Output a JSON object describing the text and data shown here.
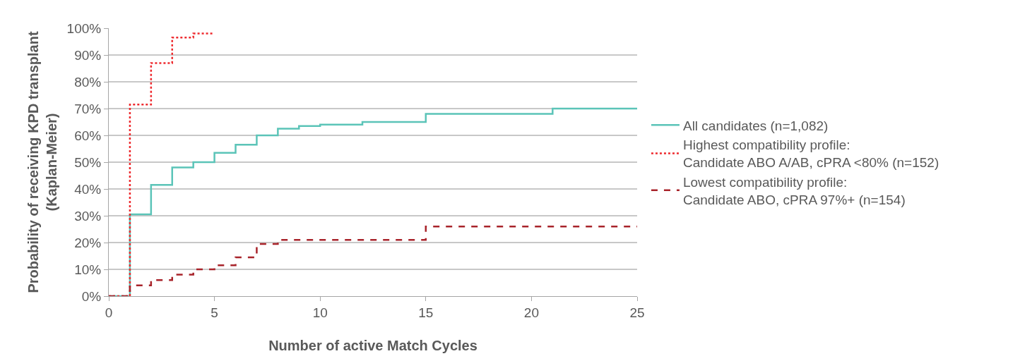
{
  "chart_data": {
    "type": "step",
    "xlabel": "Number of active Match Cycles",
    "ylabel": "Probability of receiving KPD transplant\n(Kaplan-Meier)",
    "xlim": [
      0,
      25
    ],
    "xticks": [
      0,
      5,
      10,
      15,
      20,
      25
    ],
    "ylim": [
      0,
      100
    ],
    "yticks": [
      {
        "value": 0,
        "label": "0%"
      },
      {
        "value": 10,
        "label": "10%"
      },
      {
        "value": 20,
        "label": "20%"
      },
      {
        "value": 30,
        "label": "30%"
      },
      {
        "value": 40,
        "label": "40%"
      },
      {
        "value": 50,
        "label": "50%"
      },
      {
        "value": 60,
        "label": "60%"
      },
      {
        "value": 70,
        "label": "70%"
      },
      {
        "value": 80,
        "label": "80%"
      },
      {
        "value": 90,
        "label": "90%"
      },
      {
        "value": 100,
        "label": "100%"
      }
    ],
    "grid": "y",
    "legend": "right",
    "marker": "none",
    "series": [
      {
        "name": "All candidates (n=1,082)",
        "color": "#5bc4b8",
        "line_style": "solid",
        "x": [
          0,
          1,
          2,
          3,
          4,
          5,
          6,
          7,
          8,
          9,
          10,
          12,
          15,
          21,
          25
        ],
        "values": [
          0,
          30.5,
          41.5,
          48,
          50,
          53.5,
          56.5,
          60,
          62.5,
          63.5,
          64,
          65,
          68,
          70,
          70
        ]
      },
      {
        "name": "Highest compatibility profile:\nCandidate ABO A/AB, cPRA <80% (n=152)",
        "color": "#ee2a2e",
        "line_style": "dotted",
        "x": [
          0,
          1,
          2,
          3,
          4,
          5
        ],
        "values": [
          0,
          71.5,
          87,
          96.5,
          98,
          98
        ]
      },
      {
        "name": "Lowest compatibility profile:\nCandidate ABO, cPRA 97%+ (n=154)",
        "color": "#a8232a",
        "line_style": "dashed",
        "x": [
          0,
          1,
          2,
          3,
          4,
          5,
          6,
          7,
          8,
          15,
          25
        ],
        "values": [
          0,
          4,
          6,
          8,
          10,
          11.5,
          14.5,
          19.5,
          21,
          26,
          26
        ]
      }
    ]
  }
}
